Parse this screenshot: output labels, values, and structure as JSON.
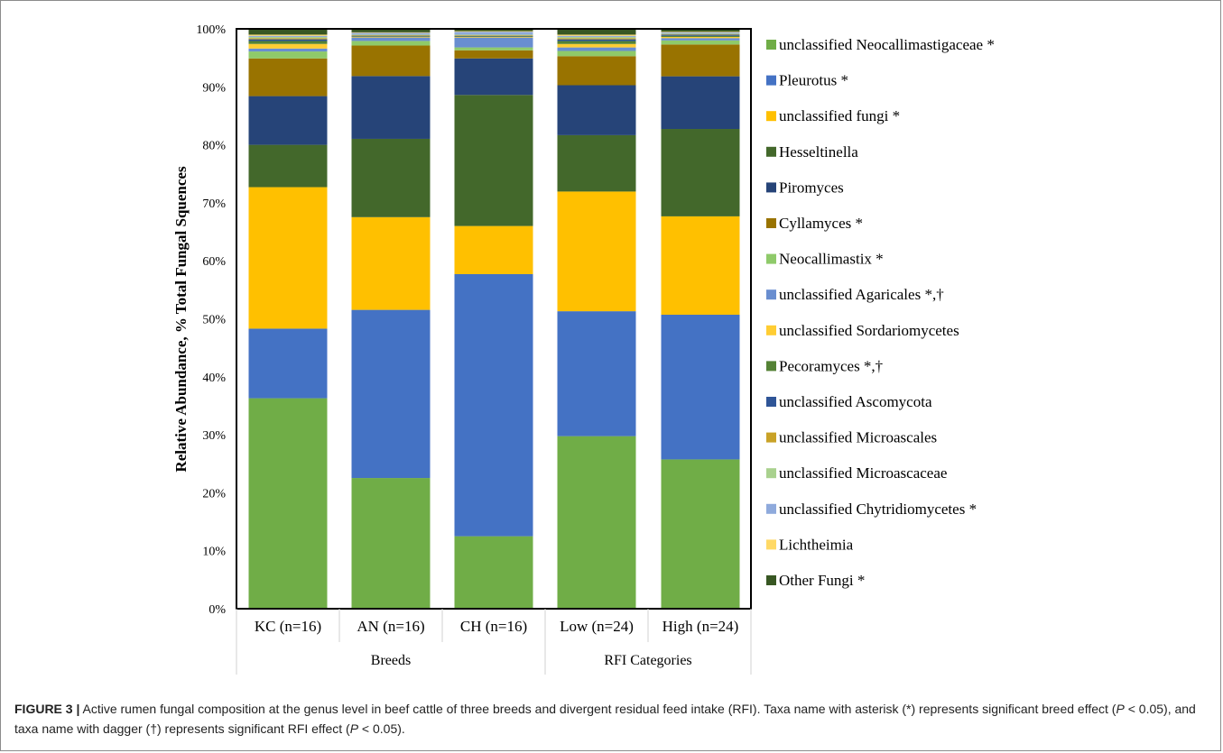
{
  "chart_data": {
    "type": "bar",
    "stacked": true,
    "ylabel": "Relative Abundance,  % Total Fungal  Squences",
    "xlabel": "",
    "ylim": [
      0,
      100
    ],
    "yticks": [
      "0%",
      "10%",
      "20%",
      "30%",
      "40%",
      "50%",
      "60%",
      "70%",
      "80%",
      "90%",
      "100%"
    ],
    "categories": [
      "KC (n=16)",
      "AN (n=16)",
      "CH (n=16)",
      "Low (n=24)",
      "High (n=24)"
    ],
    "groups": [
      {
        "label": "Breeds",
        "members": [
          0,
          1,
          2
        ]
      },
      {
        "label": "RFI Categories",
        "members": [
          3,
          4
        ]
      }
    ],
    "legend_position": "right",
    "grid": false,
    "series": [
      {
        "name": "unclassified Neocallimastigaceae *",
        "color": "#70AD47",
        "values": [
          36.3,
          22.7,
          12.5,
          29.7,
          25.8
        ]
      },
      {
        "name": "Pleurotus *",
        "color": "#4472C4",
        "values": [
          12.0,
          29.2,
          45.2,
          21.5,
          25.0
        ]
      },
      {
        "name": "unclassified fungi *",
        "color": "#FFC000",
        "values": [
          24.4,
          16.1,
          8.3,
          20.6,
          17.0
        ]
      },
      {
        "name": "Hesseltinella",
        "color": "#43682B",
        "values": [
          7.3,
          13.6,
          22.6,
          9.7,
          15.1
        ]
      },
      {
        "name": "Piromyces",
        "color": "#264478",
        "values": [
          8.4,
          10.9,
          6.3,
          8.6,
          9.1
        ]
      },
      {
        "name": "Cyllamyces *",
        "color": "#997300",
        "values": [
          6.5,
          5.3,
          1.4,
          5.0,
          5.5
        ]
      },
      {
        "name": "Neocallimastix *",
        "color": "#8FCA6A",
        "values": [
          1.2,
          0.8,
          0.5,
          0.9,
          0.7
        ]
      },
      {
        "name": "unclassified Agaricales *,†",
        "color": "#698ED0",
        "values": [
          0.5,
          0.6,
          1.7,
          0.6,
          0.4
        ]
      },
      {
        "name": "unclassified Sordariomycetes",
        "color": "#FFCD33",
        "values": [
          0.8,
          0.1,
          0.1,
          0.6,
          0.2
        ]
      },
      {
        "name": "Pecoramyces *,†",
        "color": "#548235",
        "values": [
          0.5,
          0.1,
          0.1,
          0.5,
          0.2
        ]
      },
      {
        "name": "unclassified Ascomycota",
        "color": "#2F5597",
        "values": [
          0.3,
          0.1,
          0.1,
          0.3,
          0.2
        ]
      },
      {
        "name": "unclassified Microascales",
        "color": "#C9A227",
        "values": [
          0.2,
          0.1,
          0.1,
          0.2,
          0.1
        ]
      },
      {
        "name": "unclassified Microascaceae",
        "color": "#A9D18E",
        "values": [
          0.2,
          0.1,
          0.1,
          0.2,
          0.1
        ]
      },
      {
        "name": "unclassified Chytridiomycetes *",
        "color": "#8FAADC",
        "values": [
          0.2,
          0.3,
          0.5,
          0.2,
          0.2
        ]
      },
      {
        "name": "Lichtheimia",
        "color": "#FFD966",
        "values": [
          0.2,
          0.1,
          0.1,
          0.2,
          0.1
        ]
      },
      {
        "name": "Other Fungi *",
        "color": "#385723",
        "values": [
          1.0,
          0.6,
          0.4,
          1.0,
          0.5
        ]
      }
    ]
  },
  "caption": {
    "label": "FIGURE 3 |",
    "text_1": " Active rumen fungal composition at the genus level in beef cattle of three breeds and divergent residual feed intake (RFI). Taxa name with asterisk (*) represents significant breed effect (",
    "p1": "P",
    "text_2": " < 0.05), and taxa name with dagger (†) represents significant RFI effect (",
    "p2": "P",
    "text_3": " < 0.05)."
  }
}
